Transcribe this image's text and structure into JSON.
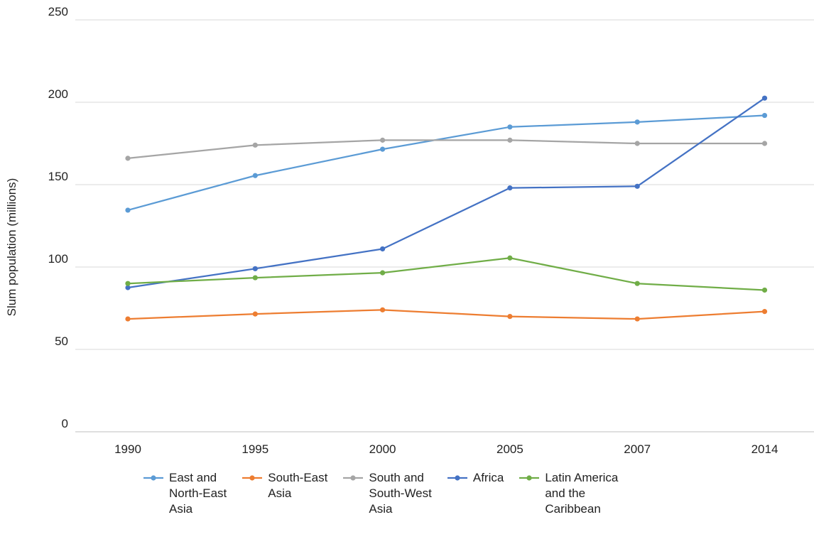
{
  "chart_data": {
    "type": "line",
    "title": "",
    "xlabel": "",
    "ylabel": "Slum population (millions)",
    "ylim": [
      0,
      250
    ],
    "yticks": [
      0,
      50,
      100,
      150,
      200,
      250
    ],
    "categories": [
      "1990",
      "1995",
      "2000",
      "2005",
      "2007",
      "2014"
    ],
    "grid": "horizontal",
    "legend_position": "bottom",
    "series": [
      {
        "name": "East and North-East Asia",
        "legend_lines": [
          "East and",
          "North-East",
          "Asia"
        ],
        "color": "#5B9BD5",
        "values": [
          134.5,
          155.5,
          171.5,
          185,
          188,
          192
        ]
      },
      {
        "name": "South-East Asia",
        "legend_lines": [
          "South-East",
          "Asia"
        ],
        "color": "#ED7D31",
        "values": [
          68.5,
          71.5,
          74,
          70,
          68.5,
          73
        ]
      },
      {
        "name": "South and South-West Asia",
        "legend_lines": [
          "South and",
          "South-West",
          "Asia"
        ],
        "color": "#A5A5A5",
        "values": [
          166,
          174,
          177,
          177,
          175,
          175
        ]
      },
      {
        "name": "Africa",
        "legend_lines": [
          "Africa"
        ],
        "color": "#4472C4",
        "values": [
          87.5,
          99,
          111,
          148,
          149,
          202.5
        ]
      },
      {
        "name": "Latin America and the Caribbean",
        "legend_lines": [
          "Latin America",
          "and the",
          "Caribbean"
        ],
        "color": "#70AD47",
        "values": [
          90,
          93.5,
          96.5,
          105.5,
          90,
          86
        ]
      }
    ]
  }
}
